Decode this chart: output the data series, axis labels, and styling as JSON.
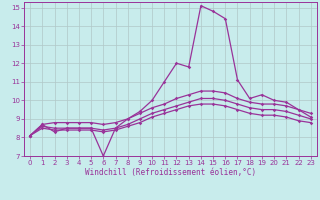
{
  "xlabel": "Windchill (Refroidissement éolien,°C)",
  "xlim": [
    -0.5,
    23.5
  ],
  "ylim": [
    7,
    15.3
  ],
  "xticks": [
    0,
    1,
    2,
    3,
    4,
    5,
    6,
    7,
    8,
    9,
    10,
    11,
    12,
    13,
    14,
    15,
    16,
    17,
    18,
    19,
    20,
    21,
    22,
    23
  ],
  "yticks": [
    7,
    8,
    9,
    10,
    11,
    12,
    13,
    14,
    15
  ],
  "bg_color": "#c8ecec",
  "grid_color": "#b0c8c8",
  "line_color": "#993399",
  "line1_y": [
    8.1,
    8.7,
    8.3,
    8.5,
    8.5,
    8.5,
    7.0,
    8.5,
    9.0,
    9.4,
    10.0,
    11.0,
    12.0,
    11.8,
    15.1,
    14.8,
    14.4,
    11.1,
    10.1,
    10.3,
    10.0,
    9.9,
    9.5,
    9.1
  ],
  "line2_y": [
    8.1,
    8.7,
    8.8,
    8.8,
    8.8,
    8.8,
    8.7,
    8.8,
    9.0,
    9.3,
    9.6,
    9.8,
    10.1,
    10.3,
    10.5,
    10.5,
    10.4,
    10.1,
    9.9,
    9.8,
    9.8,
    9.7,
    9.5,
    9.3
  ],
  "line3_y": [
    8.1,
    8.6,
    8.5,
    8.5,
    8.5,
    8.5,
    8.4,
    8.5,
    8.7,
    9.0,
    9.3,
    9.5,
    9.7,
    9.9,
    10.1,
    10.1,
    10.0,
    9.8,
    9.6,
    9.5,
    9.5,
    9.4,
    9.2,
    9.0
  ],
  "line4_y": [
    8.1,
    8.5,
    8.4,
    8.4,
    8.4,
    8.4,
    8.3,
    8.4,
    8.6,
    8.8,
    9.1,
    9.3,
    9.5,
    9.7,
    9.8,
    9.8,
    9.7,
    9.5,
    9.3,
    9.2,
    9.2,
    9.1,
    8.9,
    8.8
  ],
  "tick_fontsize": 5.0,
  "xlabel_fontsize": 5.5
}
